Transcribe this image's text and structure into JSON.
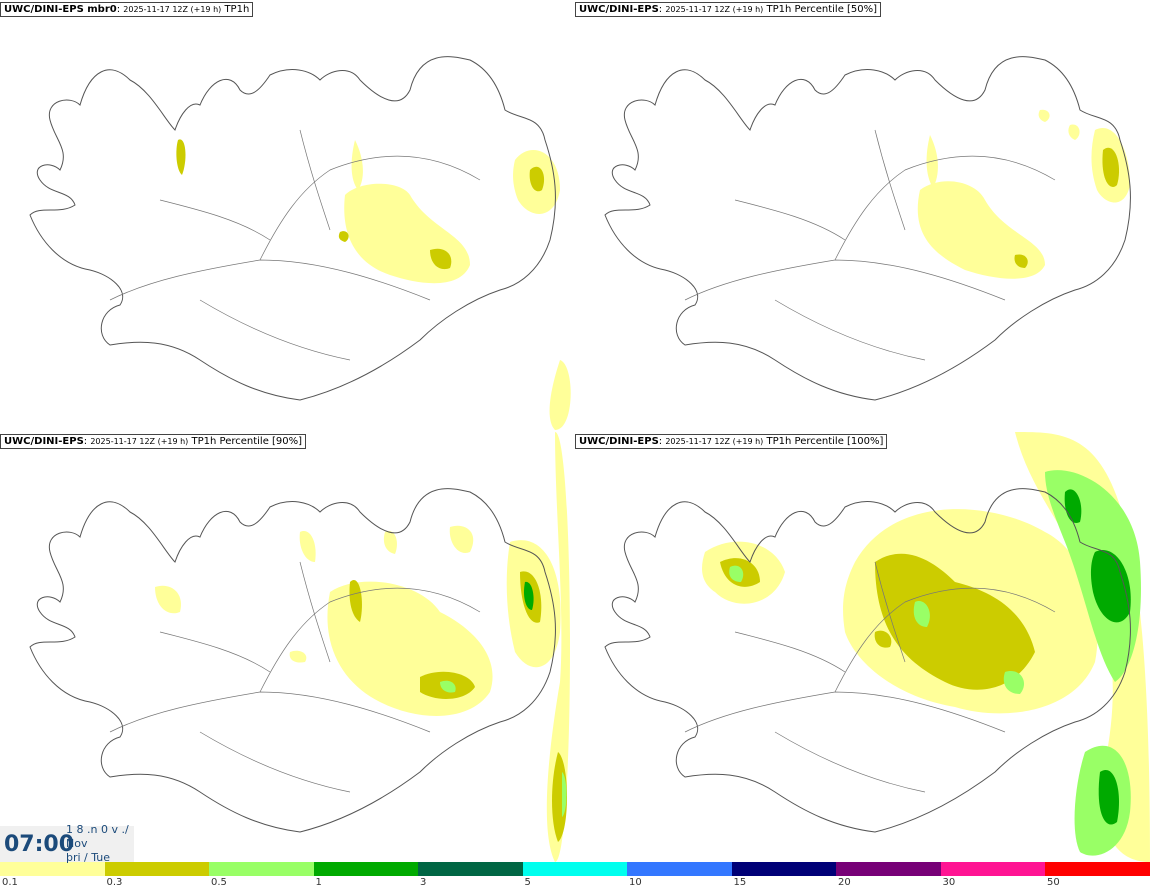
{
  "panels": [
    {
      "source": "UWC/DINI-EPS mbr0",
      "run": "2025-11-17 12Z (+19 h)",
      "field": "TP1h"
    },
    {
      "source": "UWC/DINI-EPS",
      "run": "2025-11-17 12Z (+19 h)",
      "field": "TP1h Percentile [50%]"
    },
    {
      "source": "UWC/DINI-EPS",
      "run": "2025-11-17 12Z (+19 h)",
      "field": "TP1h Percentile [90%]"
    },
    {
      "source": "UWC/DINI-EPS",
      "run": "2025-11-17 12Z (+19 h)",
      "field": "TP1h Percentile [100%]"
    }
  ],
  "valid_time": {
    "time": "07:00",
    "line1": "1 8 .n 0 v ./",
    "line2": "Nov",
    "line3": "þri / Tue"
  },
  "colorbar": {
    "colors": [
      "#ffff99",
      "#cccc00",
      "#99ff66",
      "#00aa00",
      "#006644",
      "#00ffee",
      "#3377ff",
      "#000077",
      "#770077",
      "#ff1493",
      "#ff0000"
    ],
    "labels": [
      "0.1",
      "0.3",
      "0.5",
      "1",
      "3",
      "5",
      "10",
      "15",
      "20",
      "30",
      "50"
    ]
  }
}
